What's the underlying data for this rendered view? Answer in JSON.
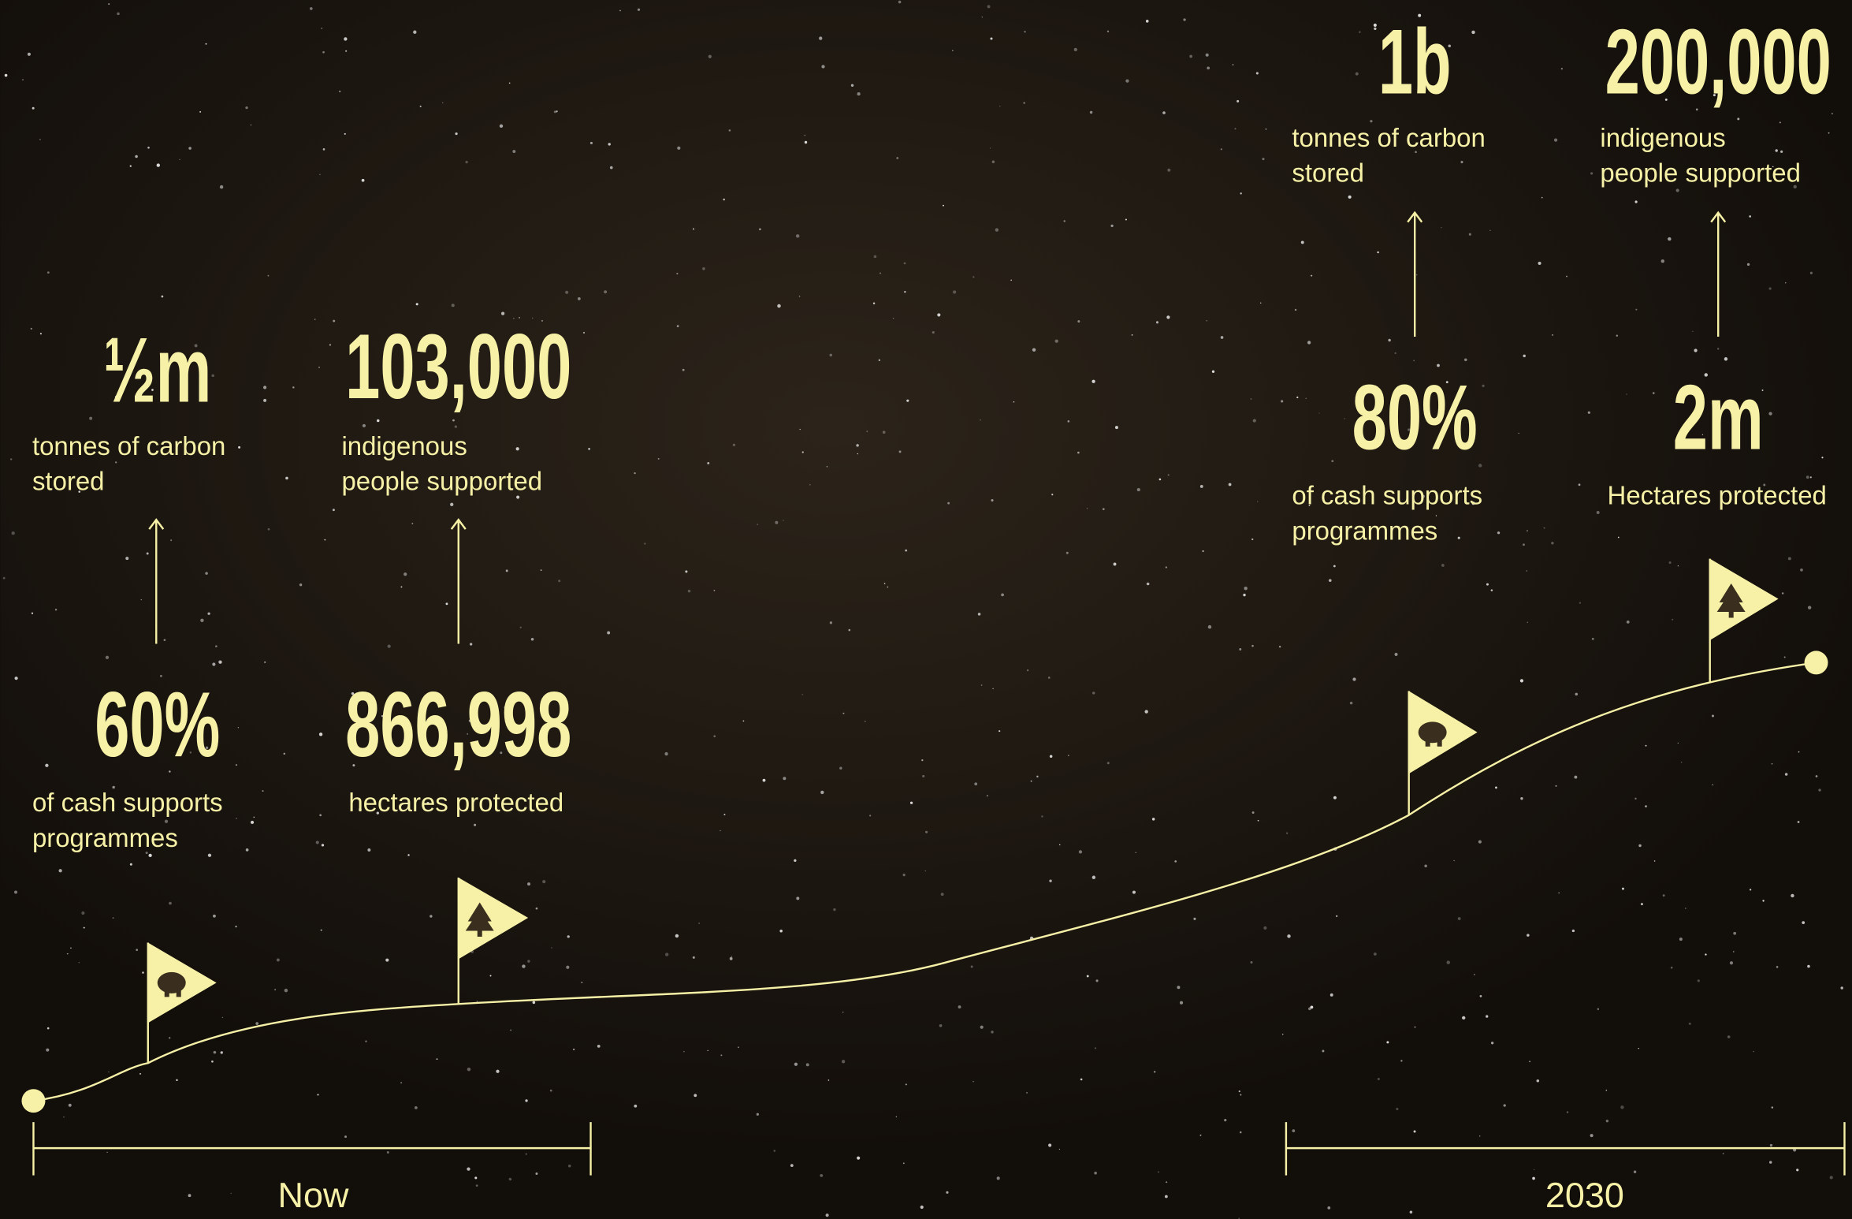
{
  "timeline": {
    "start_label": "Now",
    "end_label": "2030",
    "now": [
      {
        "goal": "½m",
        "goal_caption": [
          "tonnes of carbon",
          "stored"
        ],
        "stat": "60%",
        "caption": [
          "of cash supports",
          "programmes"
        ]
      },
      {
        "goal": "103,000",
        "goal_caption": [
          "indigenous",
          "people supported"
        ],
        "stat": "866,998",
        "caption": [
          "hectares protected"
        ]
      }
    ],
    "target": [
      {
        "goal": "1b",
        "goal_caption": [
          "tonnes of carbon",
          "stored"
        ],
        "stat": "80%",
        "caption": [
          "of cash supports",
          "programmes"
        ]
      },
      {
        "goal": "200,000",
        "goal_caption": [
          "indigenous",
          "people supported"
        ],
        "stat": "2m",
        "caption": [
          "Hectares protected"
        ]
      }
    ]
  }
}
